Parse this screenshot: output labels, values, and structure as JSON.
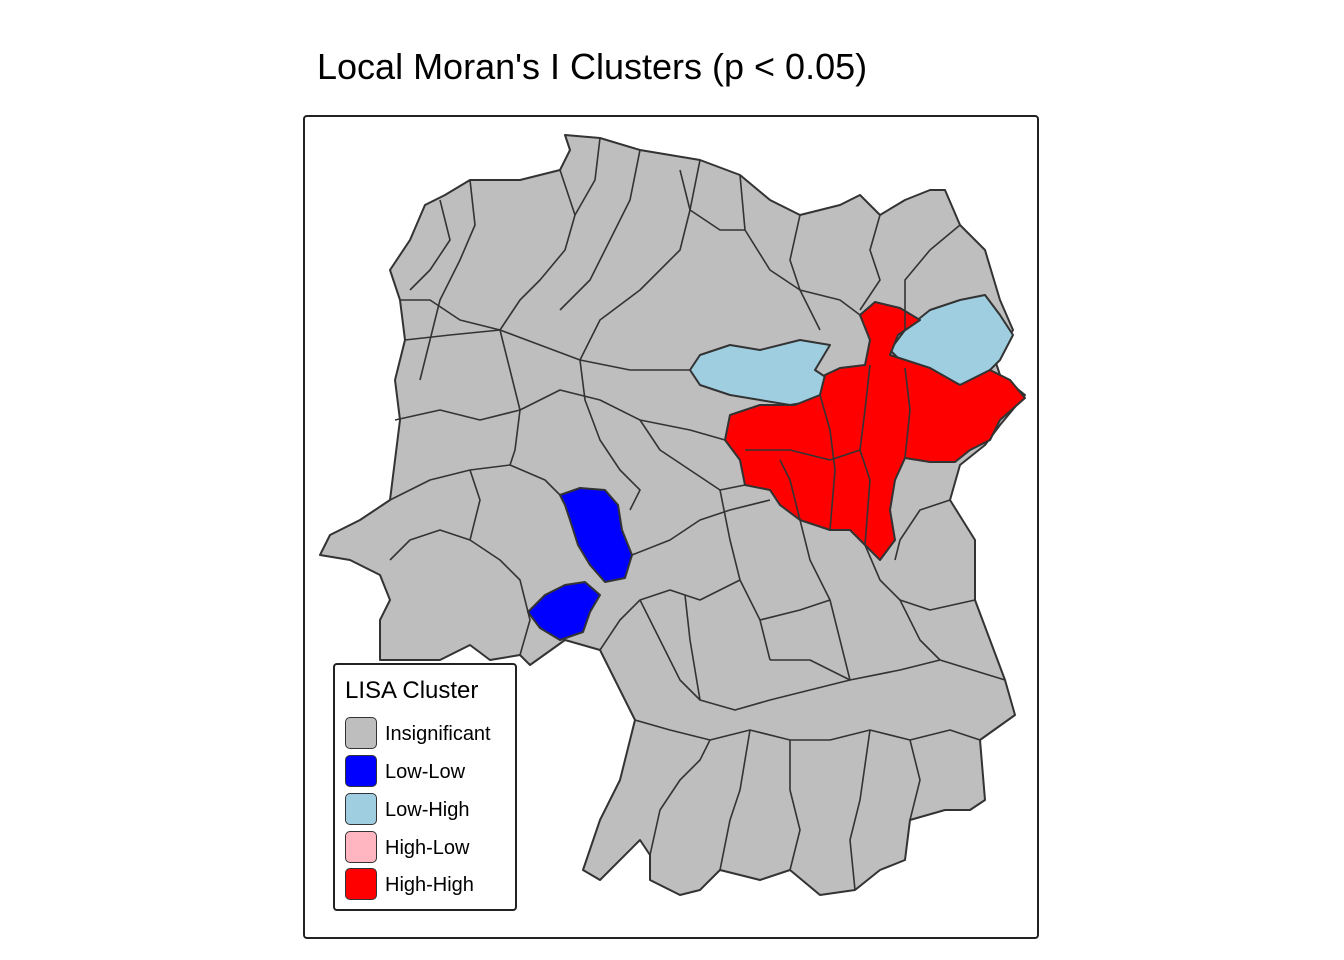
{
  "title": "Local Moran's I Clusters (p < 0.05)",
  "legend": {
    "title": "LISA Cluster",
    "items": [
      {
        "label": "Insignificant",
        "color": "#BEBEBE"
      },
      {
        "label": "Low-Low",
        "color": "#0000FF"
      },
      {
        "label": "Low-High",
        "color": "#9ECEE0"
      },
      {
        "label": "High-Low",
        "color": "#FFB6C1"
      },
      {
        "label": "High-High",
        "color": "#FF0000"
      }
    ]
  },
  "colors": {
    "insignificant": "#BEBEBE",
    "low_low": "#0000FF",
    "low_high": "#9ECEE0",
    "high_high": "#FF0000",
    "border": "#333333"
  }
}
